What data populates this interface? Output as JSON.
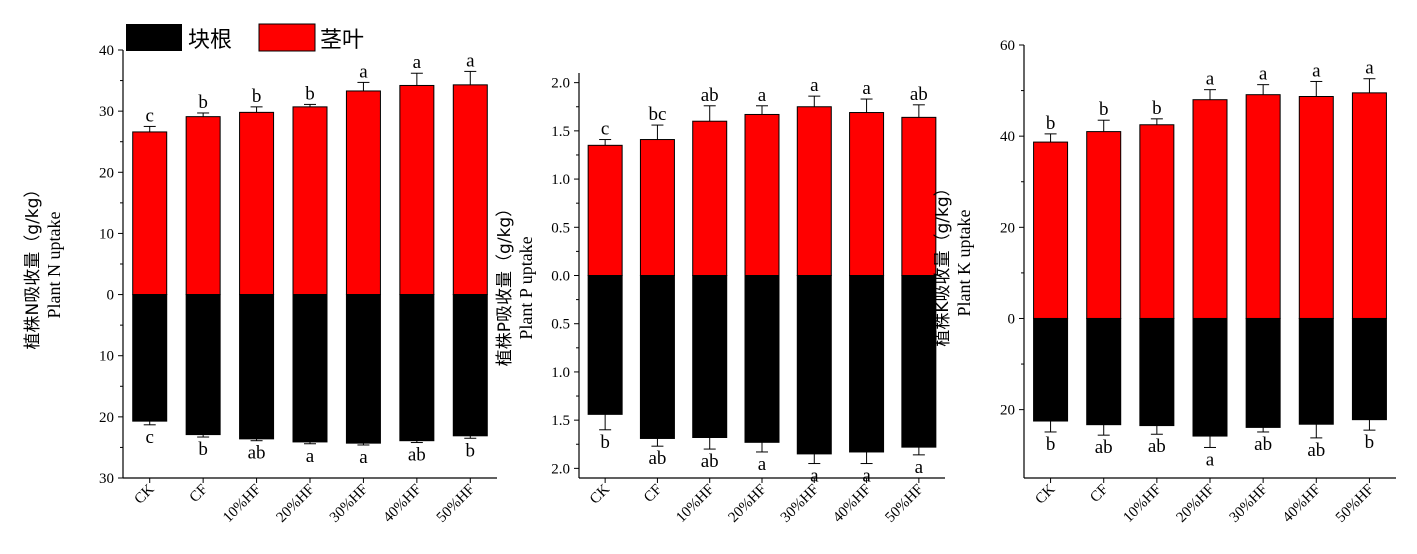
{
  "legend": {
    "root_label": "块根",
    "shoot_label": "茎叶"
  },
  "colors": {
    "shoot": "#ff0000",
    "root": "#000000",
    "axis": "#000000"
  },
  "chart_data": [
    {
      "type": "bar",
      "stacking": "diverging",
      "ylabel_cn": "植株N吸收量（g/kg）",
      "ylabel_en": "Plant N uptake",
      "ylim": [
        -30,
        40
      ],
      "yticks": [
        40,
        30,
        20,
        10,
        0,
        -10,
        -20,
        -30
      ],
      "ytick_labels": [
        "40",
        "30",
        "20",
        "10",
        "0",
        "10",
        "20",
        "30"
      ],
      "categories": [
        "CK",
        "CF",
        "10%HF",
        "20%HF",
        "30%HF",
        "40%HF",
        "50%HF"
      ],
      "series": [
        {
          "name": "茎叶",
          "values": [
            26.6,
            29.1,
            29.8,
            30.7,
            33.3,
            34.2,
            34.3
          ],
          "errors": [
            0.9,
            0.6,
            0.9,
            0.4,
            1.4,
            2.0,
            2.2
          ],
          "significance": [
            "c",
            "b",
            "b",
            "b",
            "a",
            "a",
            "a"
          ]
        },
        {
          "name": "块根",
          "values": [
            -20.7,
            -22.9,
            -23.6,
            -24.1,
            -24.3,
            -23.9,
            -23.1
          ],
          "errors": [
            0.6,
            0.4,
            0.3,
            0.3,
            0.3,
            0.3,
            0.4
          ],
          "significance": [
            "c",
            "b",
            "ab",
            "a",
            "a",
            "ab",
            "b"
          ]
        }
      ]
    },
    {
      "type": "bar",
      "stacking": "diverging",
      "ylabel_cn": "植株P吸收量（g/kg）",
      "ylabel_en": "Plant P uptake",
      "ylim": [
        -2.1,
        2.1
      ],
      "yticks": [
        2.0,
        1.5,
        1.0,
        0.5,
        0.0,
        -0.5,
        -1.0,
        -1.5,
        -2.0
      ],
      "ytick_labels": [
        "2.0",
        "1.5",
        "1.0",
        "0.5",
        "0.0",
        "0.5",
        "1.0",
        "1.5",
        "2.0"
      ],
      "categories": [
        "CK",
        "CF",
        "10%HF",
        "20%HF",
        "30%HF",
        "40%HF",
        "50%HF"
      ],
      "series": [
        {
          "name": "茎叶",
          "values": [
            1.35,
            1.41,
            1.6,
            1.67,
            1.75,
            1.69,
            1.64
          ],
          "errors": [
            0.06,
            0.15,
            0.16,
            0.09,
            0.11,
            0.14,
            0.13
          ],
          "significance": [
            "c",
            "bc",
            "ab",
            "a",
            "a",
            "a",
            "ab"
          ]
        },
        {
          "name": "块根",
          "values": [
            -1.44,
            -1.69,
            -1.68,
            -1.73,
            -1.85,
            -1.83,
            -1.78
          ],
          "errors": [
            0.16,
            0.08,
            0.12,
            0.1,
            0.1,
            0.12,
            0.08
          ],
          "significance": [
            "b",
            "ab",
            "ab",
            "a",
            "a",
            "a",
            "a"
          ]
        }
      ]
    },
    {
      "type": "bar",
      "stacking": "diverging",
      "ylabel_cn": "植株K吸收量（g/kg）",
      "ylabel_en": "Plant K uptake",
      "ylim": [
        -35,
        60
      ],
      "yticks": [
        60,
        40,
        20,
        0,
        -20
      ],
      "ytick_labels": [
        "60",
        "40",
        "20",
        "0",
        "20"
      ],
      "categories": [
        "CK",
        "CF",
        "10%HF",
        "20%HF",
        "30%HF",
        "40%HF",
        "50%HF"
      ],
      "series": [
        {
          "name": "茎叶",
          "values": [
            38.7,
            41.0,
            42.5,
            48.0,
            49.1,
            48.7,
            49.5
          ],
          "errors": [
            1.8,
            2.5,
            1.3,
            2.2,
            2.2,
            3.3,
            3.1
          ],
          "significance": [
            "b",
            "b",
            "b",
            "a",
            "a",
            "a",
            "a"
          ]
        },
        {
          "name": "块根",
          "values": [
            -22.5,
            -23.3,
            -23.5,
            -25.8,
            -23.9,
            -23.2,
            -22.2
          ],
          "errors": [
            2.4,
            2.3,
            1.9,
            2.5,
            1.0,
            3.0,
            2.3
          ],
          "significance": [
            "b",
            "ab",
            "ab",
            "a",
            "ab",
            "ab",
            "b"
          ]
        }
      ]
    }
  ]
}
